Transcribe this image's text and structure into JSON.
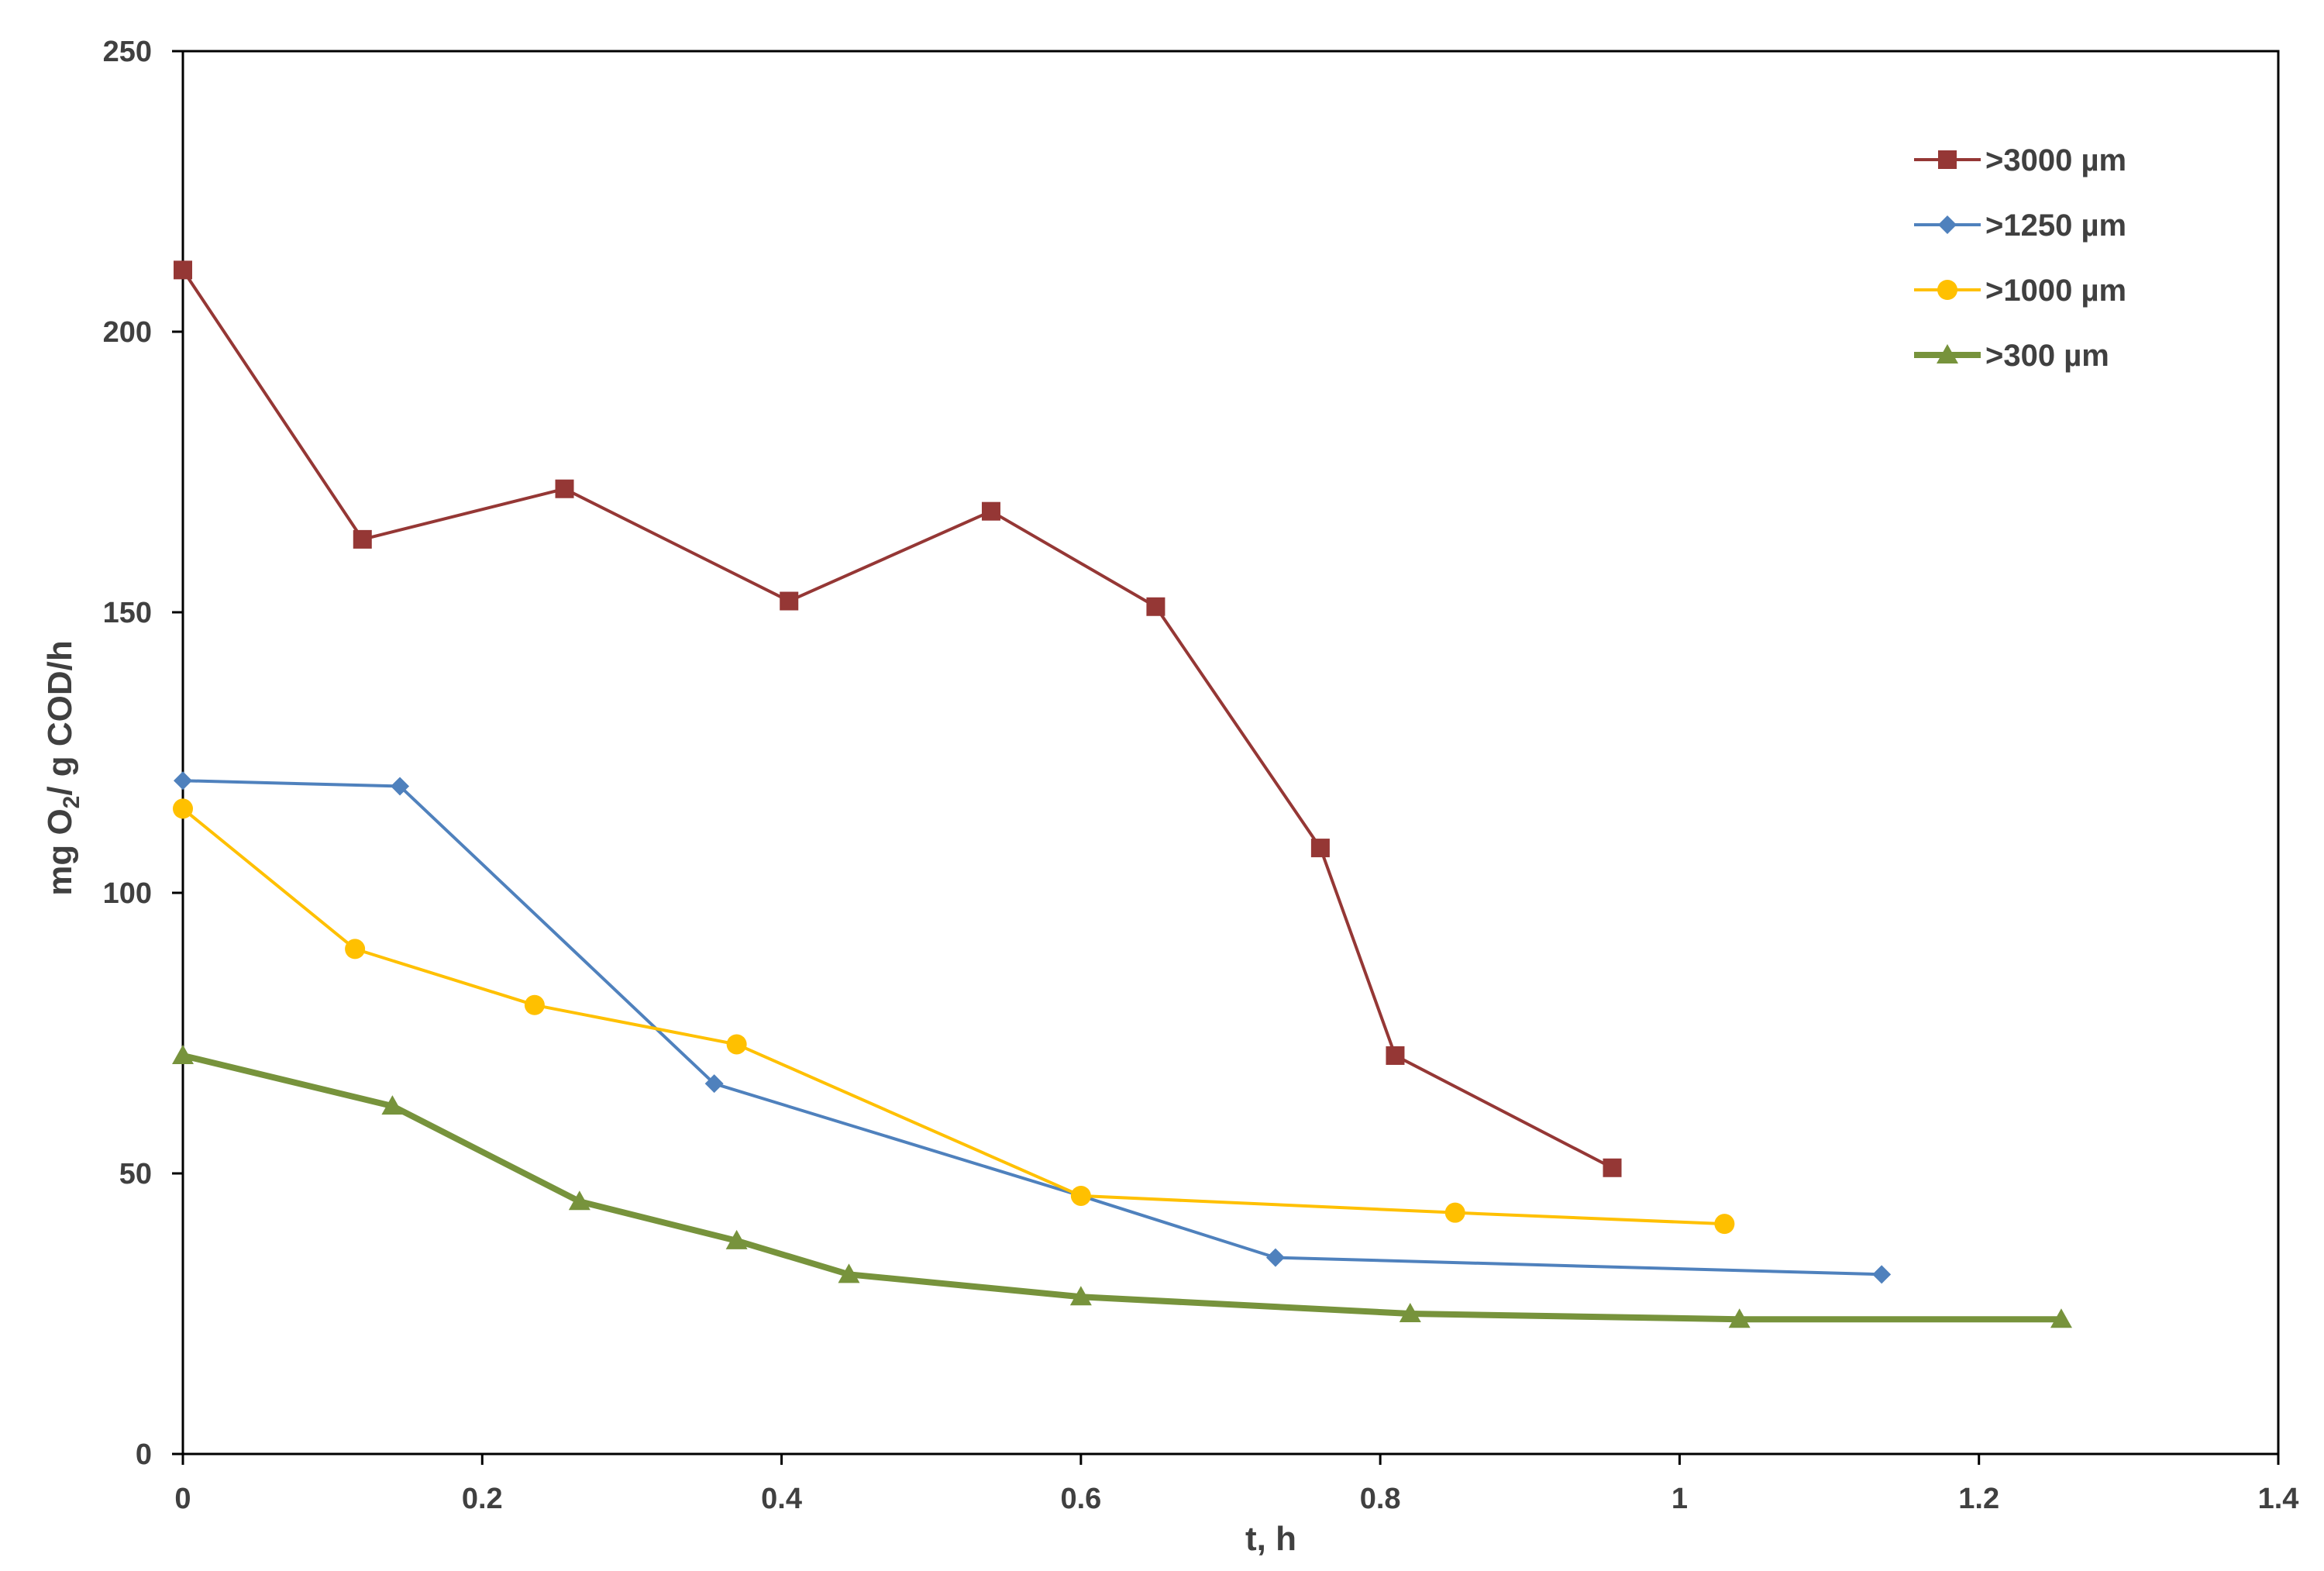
{
  "chart_data": {
    "type": "line",
    "title": "",
    "xlabel": "t, h",
    "ylabel": {
      "prefix": "mg O",
      "subscript": "2",
      "suffix": "/ g COD/h"
    },
    "xlim": [
      0,
      1.4
    ],
    "ylim": [
      0,
      250
    ],
    "xticks": [
      0,
      0.2,
      0.4,
      0.6,
      0.8,
      1,
      1.2,
      1.4
    ],
    "yticks": [
      0,
      50,
      100,
      150,
      200,
      250
    ],
    "xtick_labels": [
      "0",
      "0.2",
      "0.4",
      "0.6",
      "0.8",
      "1",
      "1.2",
      "1.4"
    ],
    "ytick_labels": [
      "0",
      "50",
      "100",
      "150",
      "200",
      "250"
    ],
    "grid": false,
    "legend_position": "top-right",
    "series": [
      {
        "name": ">3000 µm",
        "color": "#953735",
        "marker": "square",
        "x": [
          0,
          0.12,
          0.255,
          0.405,
          0.54,
          0.65,
          0.76,
          0.81,
          0.955
        ],
        "y": [
          211,
          163,
          172,
          152,
          168,
          151,
          108,
          71,
          51
        ]
      },
      {
        "name": ">1250 µm",
        "color": "#4F81BD",
        "marker": "diamond",
        "x": [
          0,
          0.145,
          0.355,
          0.6,
          0.73,
          1.135
        ],
        "y": [
          120,
          119,
          66,
          46,
          35,
          32
        ]
      },
      {
        "name": ">1000 µm",
        "color": "#FFC000",
        "marker": "circle",
        "x": [
          0,
          0.115,
          0.235,
          0.37,
          0.6,
          0.85,
          1.03
        ],
        "y": [
          115,
          90,
          80,
          73,
          46,
          43,
          41
        ]
      },
      {
        "name": ">300 µm",
        "color": "#77933C",
        "marker": "triangle",
        "x": [
          0,
          0.14,
          0.265,
          0.37,
          0.445,
          0.6,
          0.82,
          1.04,
          1.255
        ],
        "y": [
          71,
          62,
          45,
          38,
          32,
          28,
          25,
          24,
          24
        ]
      }
    ]
  }
}
